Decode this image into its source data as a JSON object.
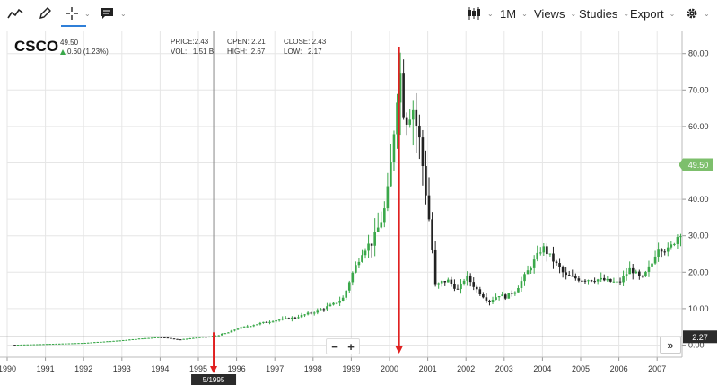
{
  "toolbar": {
    "interval_label": "1M",
    "views_label": "Views",
    "studies_label": "Studies",
    "export_label": "Export"
  },
  "quote": {
    "symbol": "CSCO",
    "last": "49.50",
    "change": "0.60 (1.23%)",
    "price_label": "PRICE:",
    "price_value": "2.43",
    "vol_label": "VOL:",
    "vol_value": "1.51 B",
    "open_label": "OPEN:",
    "open_value": "2.21",
    "high_label": "HIGH:",
    "high_value": "2.67",
    "close_label": "CLOSE:",
    "close_value": "2.43",
    "low_label": "LOW:",
    "low_value": "2.17"
  },
  "crosshair": {
    "date_label": "5/1995",
    "price_label": "2.27"
  },
  "price_tag": "49.50",
  "zoom": {
    "minus": "−",
    "plus": "+"
  },
  "expand_label": "»",
  "colors": {
    "up": "#3aa84a",
    "down": "#222222",
    "tag": "#7dbf6c",
    "arrow": "#e02020",
    "accent": "#2f7fd8"
  },
  "chart_data": {
    "type": "candlestick",
    "x_ticks": [
      "1990",
      "1991",
      "1992",
      "1993",
      "1994",
      "1995",
      "1996",
      "1997",
      "1998",
      "1999",
      "2000",
      "2001",
      "2002",
      "2003",
      "2004",
      "2005",
      "2006",
      "2007"
    ],
    "y_ticks": [
      "0.00",
      "10.00",
      "20.00",
      "30.00",
      "40.00",
      "50.00",
      "60.00",
      "70.00",
      "80.00"
    ],
    "ylim": [
      0,
      85
    ],
    "xlim": [
      1990,
      2007.7
    ],
    "grid": true,
    "series": [
      {
        "values": [
          [
            1990.2,
            0.1
          ],
          [
            1991.0,
            0.3
          ],
          [
            1992.0,
            0.6
          ],
          [
            1993.0,
            1.3
          ],
          [
            1993.5,
            1.8
          ],
          [
            1994.0,
            2.2
          ],
          [
            1994.5,
            1.5
          ],
          [
            1995.0,
            2.1
          ],
          [
            1995.4,
            2.4
          ],
          [
            1995.8,
            3.5
          ],
          [
            1996.0,
            4.5
          ],
          [
            1996.5,
            5.7
          ],
          [
            1997.0,
            6.8
          ],
          [
            1997.5,
            7.5
          ],
          [
            1998.0,
            9.0
          ],
          [
            1998.5,
            11.0
          ],
          [
            1998.8,
            13.0
          ],
          [
            1999.0,
            19.0
          ],
          [
            1999.3,
            26.0
          ],
          [
            1999.6,
            29.0
          ],
          [
            1999.9,
            38.0
          ],
          [
            2000.0,
            45.0
          ],
          [
            2000.2,
            70.0
          ],
          [
            2000.25,
            78.0
          ],
          [
            2000.4,
            62.0
          ],
          [
            2000.6,
            66.0
          ],
          [
            2000.8,
            55.0
          ],
          [
            2001.0,
            38.0
          ],
          [
            2001.1,
            28.0
          ],
          [
            2001.2,
            16.0
          ],
          [
            2001.5,
            18.0
          ],
          [
            2001.8,
            15.0
          ],
          [
            2002.0,
            19.0
          ],
          [
            2002.3,
            15.0
          ],
          [
            2002.6,
            12.0
          ],
          [
            2002.9,
            14.0
          ],
          [
            2003.0,
            13.0
          ],
          [
            2003.3,
            15.0
          ],
          [
            2003.6,
            20.0
          ],
          [
            2003.9,
            25.0
          ],
          [
            2004.0,
            27.0
          ],
          [
            2004.3,
            23.0
          ],
          [
            2004.6,
            19.0
          ],
          [
            2005.0,
            18.0
          ],
          [
            2005.5,
            18.0
          ],
          [
            2006.0,
            17.0
          ],
          [
            2006.3,
            21.0
          ],
          [
            2006.6,
            18.0
          ],
          [
            2006.9,
            23.0
          ],
          [
            2007.0,
            27.0
          ],
          [
            2007.3,
            26.0
          ],
          [
            2007.6,
            31.0
          ]
        ]
      }
    ],
    "annotations": [
      {
        "x": 1995.4,
        "note": "5/1995"
      },
      {
        "x": 2000.25
      }
    ]
  }
}
